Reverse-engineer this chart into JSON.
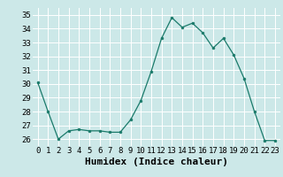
{
  "x": [
    0,
    1,
    2,
    3,
    4,
    5,
    6,
    7,
    8,
    9,
    10,
    11,
    12,
    13,
    14,
    15,
    16,
    17,
    18,
    19,
    20,
    21,
    22,
    23
  ],
  "y": [
    30.1,
    28.0,
    26.0,
    26.6,
    26.7,
    26.6,
    26.6,
    26.5,
    26.5,
    27.4,
    28.8,
    30.9,
    33.3,
    34.8,
    34.1,
    34.4,
    33.7,
    32.6,
    33.3,
    32.1,
    30.4,
    28.0,
    25.9,
    25.9
  ],
  "line_color": "#1a7a6a",
  "marker": "o",
  "marker_size": 2.0,
  "bg_color": "#cce8e8",
  "grid_color": "#ffffff",
  "xlabel": "Humidex (Indice chaleur)",
  "ylim": [
    25.5,
    35.5
  ],
  "xlim": [
    -0.5,
    23.5
  ],
  "yticks": [
    26,
    27,
    28,
    29,
    30,
    31,
    32,
    33,
    34,
    35
  ],
  "xticks": [
    0,
    1,
    2,
    3,
    4,
    5,
    6,
    7,
    8,
    9,
    10,
    11,
    12,
    13,
    14,
    15,
    16,
    17,
    18,
    19,
    20,
    21,
    22,
    23
  ],
  "tick_fontsize": 6.5,
  "xlabel_fontsize": 8.0
}
